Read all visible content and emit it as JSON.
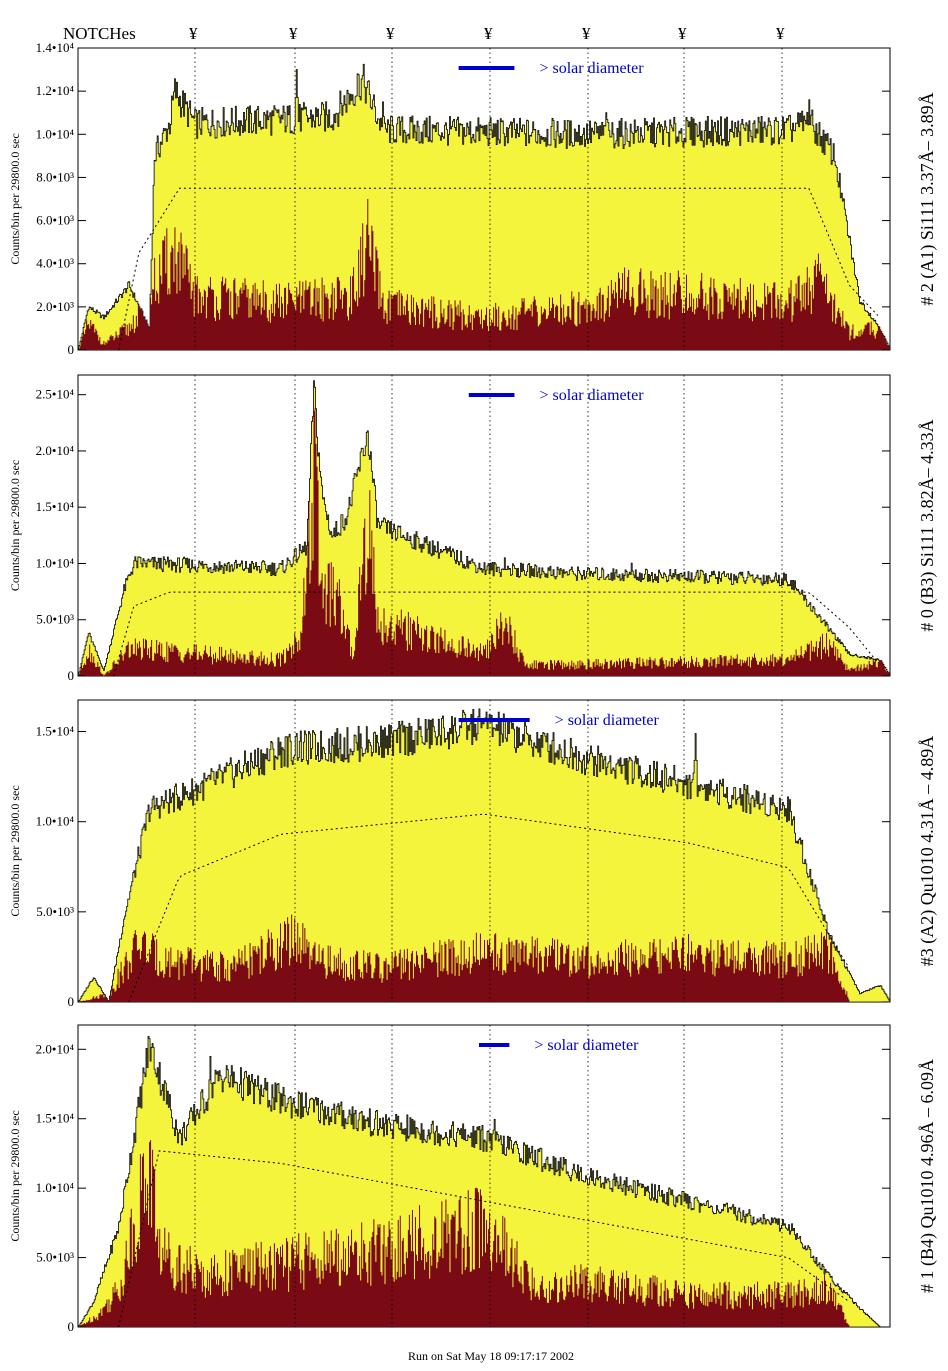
{
  "header": {
    "notches_label": "NOTCHes",
    "notch_symbol": "¥"
  },
  "footer": {
    "run_text": "Run on Sat May 18 09:17:17 2002"
  },
  "colors": {
    "envelope": "#f4f43c",
    "core": "#7a0a14",
    "model": "#000000",
    "bar": "#0000cc",
    "solar_text": "#0000cc"
  },
  "chart_data": [
    {
      "type": "area",
      "right_label": "# 2 (A1) Si111  3.37Å– 3.89Å",
      "ylabel": "Counts/bin per  29800.0 sec",
      "yticks": [
        "0",
        "2.0•10³",
        "4.0•10³",
        "6.0•10³",
        "8.0•10³",
        "1.0•10⁴",
        "1.2•10⁴",
        "1.4•10⁴"
      ],
      "ylim": [
        0,
        14000
      ],
      "solar_text": "> solar diameter",
      "envelope_profile": [
        [
          0,
          0
        ],
        [
          10,
          2000
        ],
        [
          25,
          1500
        ],
        [
          50,
          3000
        ],
        [
          70,
          1000
        ],
        [
          75,
          9000
        ],
        [
          90,
          10500
        ],
        [
          95,
          12000
        ],
        [
          115,
          10500
        ],
        [
          250,
          10800
        ],
        [
          280,
          12500
        ],
        [
          300,
          10200
        ],
        [
          500,
          10000
        ],
        [
          700,
          10200
        ],
        [
          720,
          10600
        ],
        [
          745,
          9000
        ],
        [
          770,
          2300
        ],
        [
          790,
          1000
        ],
        [
          800,
          0
        ]
      ],
      "core_profile": [
        [
          0,
          0
        ],
        [
          10,
          1200
        ],
        [
          25,
          300
        ],
        [
          50,
          1000
        ],
        [
          75,
          3000
        ],
        [
          95,
          4500
        ],
        [
          115,
          2500
        ],
        [
          200,
          2200
        ],
        [
          270,
          2500
        ],
        [
          285,
          5000
        ],
        [
          300,
          2000
        ],
        [
          400,
          1500
        ],
        [
          500,
          2000
        ],
        [
          540,
          2700
        ],
        [
          700,
          2200
        ],
        [
          730,
          3200
        ],
        [
          760,
          800
        ],
        [
          790,
          1000
        ],
        [
          800,
          0
        ]
      ],
      "model_profile": [
        [
          40,
          0
        ],
        [
          60,
          4500
        ],
        [
          100,
          7500
        ],
        [
          720,
          7500
        ],
        [
          760,
          3000
        ],
        [
          790,
          1500
        ]
      ],
      "spikes": [
        [
          95,
          12300
        ],
        [
          215,
          13000
        ],
        [
          275,
          12800
        ],
        [
          300,
          11500
        ],
        [
          520,
          11000
        ],
        [
          608,
          10500
        ],
        [
          720,
          11600
        ]
      ],
      "solar_bar": [
        375,
        430
      ]
    },
    {
      "type": "area",
      "right_label": "# 0 (B3) Si111  3.82Å– 4.33Å",
      "ylabel": "Counts/bin per  29800.0 sec",
      "yticks": [
        "0",
        "5.0•10³",
        "1.0•10⁴",
        "1.5•10⁴",
        "2.0•10⁴",
        "2.5•10⁴"
      ],
      "ylim": [
        0,
        28000
      ],
      "solar_text": "> solar diameter",
      "envelope_profile": [
        [
          0,
          0
        ],
        [
          10,
          4000
        ],
        [
          25,
          500
        ],
        [
          45,
          8000
        ],
        [
          55,
          10500
        ],
        [
          200,
          10000
        ],
        [
          225,
          12000
        ],
        [
          232,
          26500
        ],
        [
          240,
          17000
        ],
        [
          250,
          13000
        ],
        [
          265,
          15000
        ],
        [
          285,
          22500
        ],
        [
          295,
          14000
        ],
        [
          400,
          10000
        ],
        [
          500,
          9500
        ],
        [
          700,
          9000
        ],
        [
          760,
          2000
        ],
        [
          790,
          1500
        ],
        [
          800,
          0
        ]
      ],
      "core_profile": [
        [
          0,
          0
        ],
        [
          10,
          2500
        ],
        [
          25,
          0
        ],
        [
          50,
          2500
        ],
        [
          200,
          1500
        ],
        [
          220,
          4000
        ],
        [
          232,
          18500
        ],
        [
          240,
          8000
        ],
        [
          255,
          7000
        ],
        [
          270,
          2000
        ],
        [
          285,
          15000
        ],
        [
          295,
          5000
        ],
        [
          400,
          2000
        ],
        [
          420,
          5000
        ],
        [
          440,
          1000
        ],
        [
          700,
          1500
        ],
        [
          740,
          3000
        ],
        [
          760,
          500
        ],
        [
          790,
          1500
        ],
        [
          800,
          0
        ]
      ],
      "model_profile": [
        [
          35,
          0
        ],
        [
          55,
          6500
        ],
        [
          90,
          7800
        ],
        [
          720,
          7800
        ],
        [
          760,
          4500
        ],
        [
          790,
          1000
        ]
      ],
      "spikes": [
        [
          232,
          26800
        ],
        [
          285,
          22800
        ],
        [
          420,
          11000
        ],
        [
          545,
          10500
        ]
      ],
      "solar_bar": [
        385,
        430
      ]
    },
    {
      "type": "area",
      "right_label": "#3 (A2) Qu1010  4.31Å – 4.89Å",
      "ylabel": "Counts/bin per  29800.0 sec",
      "yticks": [
        "0",
        "5.0•10³",
        "1.0•10⁴",
        "1.5•10⁴"
      ],
      "ylim": [
        0,
        18000
      ],
      "solar_text": "> solar diameter",
      "envelope_profile": [
        [
          0,
          0
        ],
        [
          15,
          1500
        ],
        [
          30,
          0
        ],
        [
          45,
          5000
        ],
        [
          70,
          11500
        ],
        [
          110,
          12500
        ],
        [
          200,
          15000
        ],
        [
          300,
          15500
        ],
        [
          400,
          16500
        ],
        [
          500,
          14500
        ],
        [
          600,
          13000
        ],
        [
          700,
          11500
        ],
        [
          740,
          4000
        ],
        [
          770,
          500
        ],
        [
          790,
          1000
        ],
        [
          800,
          0
        ]
      ],
      "core_profile": [
        [
          0,
          0
        ],
        [
          30,
          500
        ],
        [
          60,
          3500
        ],
        [
          80,
          2500
        ],
        [
          150,
          2000
        ],
        [
          215,
          3800
        ],
        [
          230,
          2500
        ],
        [
          300,
          2000
        ],
        [
          400,
          3000
        ],
        [
          500,
          2500
        ],
        [
          600,
          2800
        ],
        [
          700,
          2500
        ],
        [
          740,
          3000
        ],
        [
          760,
          0
        ],
        [
          800,
          0
        ]
      ],
      "model_profile": [
        [
          50,
          0
        ],
        [
          100,
          7500
        ],
        [
          200,
          10000
        ],
        [
          400,
          11200
        ],
        [
          600,
          9500
        ],
        [
          700,
          8000
        ],
        [
          760,
          2000
        ]
      ],
      "spikes": [
        [
          215,
          16000
        ],
        [
          300,
          16200
        ],
        [
          400,
          16800
        ],
        [
          608,
          16000
        ]
      ],
      "solar_bar": [
        375,
        445
      ]
    },
    {
      "type": "area",
      "right_label": "# 1 (B4) Qu1010 4.96Å – 6.09Å",
      "ylabel": "Counts/bin per  29800.0 sec",
      "yticks": [
        "0",
        "5.0•10³",
        "1.0•10⁴",
        "1.5•10⁴",
        "2.0•10⁴"
      ],
      "ylim": [
        0,
        24000
      ],
      "solar_text": "> solar diameter",
      "envelope_profile": [
        [
          0,
          0
        ],
        [
          15,
          2000
        ],
        [
          40,
          8000
        ],
        [
          70,
          22500
        ],
        [
          100,
          15000
        ],
        [
          140,
          20000
        ],
        [
          200,
          18000
        ],
        [
          300,
          16000
        ],
        [
          400,
          15000
        ],
        [
          500,
          12000
        ],
        [
          600,
          10000
        ],
        [
          700,
          8000
        ],
        [
          740,
          4000
        ],
        [
          770,
          1500
        ],
        [
          790,
          0
        ],
        [
          800,
          0
        ]
      ],
      "core_profile": [
        [
          0,
          0
        ],
        [
          20,
          1000
        ],
        [
          40,
          3000
        ],
        [
          70,
          13000
        ],
        [
          80,
          6000
        ],
        [
          120,
          4000
        ],
        [
          200,
          5000
        ],
        [
          300,
          6000
        ],
        [
          400,
          8000
        ],
        [
          450,
          3000
        ],
        [
          500,
          3500
        ],
        [
          600,
          2500
        ],
        [
          700,
          2500
        ],
        [
          740,
          3000
        ],
        [
          760,
          0
        ],
        [
          800,
          0
        ]
      ],
      "model_profile": [
        [
          40,
          0
        ],
        [
          80,
          14000
        ],
        [
          200,
          13000
        ],
        [
          400,
          10000
        ],
        [
          600,
          7000
        ],
        [
          700,
          5500
        ],
        [
          760,
          2000
        ]
      ],
      "spikes": [
        [
          70,
          22800
        ],
        [
          130,
          21500
        ],
        [
          180,
          19000
        ],
        [
          270,
          17500
        ],
        [
          410,
          16500
        ],
        [
          450,
          13500
        ]
      ],
      "solar_bar": [
        395,
        425
      ]
    }
  ]
}
